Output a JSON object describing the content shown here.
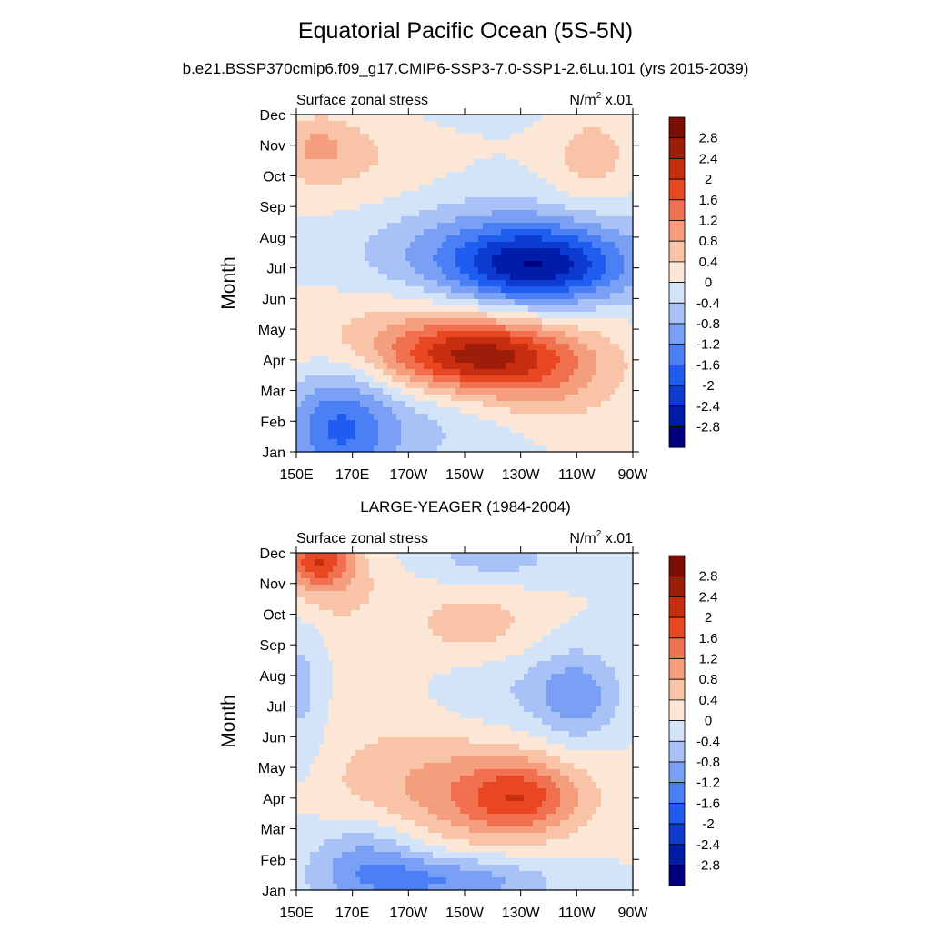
{
  "figure": {
    "title": "Equatorial Pacific Ocean (5S-5N)",
    "subtitle": "b.e21.BSSP370cmip6.f09_g17.CMIP6-SSP3-7.0-SSP1-2.6Lu.101 (yrs 2015-2039)",
    "panel2_title": "LARGE-YEAGER (1984-2004)"
  },
  "chart_data": [
    {
      "type": "heatmap",
      "left_label": "Surface zonal stress",
      "unit_label_base": "N/m",
      "unit_label_sup": "2",
      "unit_label_tail": " x.01",
      "ylabel": "Month",
      "x_tick_labels": [
        "150E",
        "170E",
        "170W",
        "150W",
        "130W",
        "110W",
        "90W"
      ],
      "x_tick_lon": [
        150,
        170,
        190,
        210,
        230,
        250,
        270
      ],
      "xlim": [
        150,
        270
      ],
      "y_tick_labels": [
        "Jan",
        "Feb",
        "Mar",
        "Apr",
        "May",
        "Jun",
        "Jul",
        "Aug",
        "Sep",
        "Oct",
        "Nov",
        "Dec"
      ],
      "ylim": [
        1,
        12
      ],
      "contour_levels": [
        -2.8,
        -2.4,
        -2,
        -1.6,
        -1.2,
        -0.8,
        -0.4,
        0,
        0.4,
        0.8,
        1.2,
        1.6,
        2,
        2.4,
        2.8
      ],
      "colorbar_labels": [
        "2.8",
        "2.4",
        "2",
        "1.6",
        "1.2",
        "0.8",
        "0.4",
        "0",
        "-0.4",
        "-0.8",
        "-1.2",
        "-1.6",
        "-2",
        "-2.4",
        "-2.8"
      ],
      "features": [
        {
          "lon": 165,
          "month": 1.8,
          "value": -1.5,
          "sx": 14,
          "sy": 1.5
        },
        {
          "lon": 195,
          "month": 2.0,
          "value": -0.5,
          "sx": 25,
          "sy": 1.2
        },
        {
          "lon": 215,
          "month": 4.1,
          "value": 1.9,
          "sx": 22,
          "sy": 0.8
        },
        {
          "lon": 200,
          "month": 4.6,
          "value": 0.8,
          "sx": 40,
          "sy": 1.3
        },
        {
          "lon": 240,
          "month": 3.2,
          "value": 0.6,
          "sx": 18,
          "sy": 1.0
        },
        {
          "lon": 235,
          "month": 7.0,
          "value": -2.0,
          "sx": 22,
          "sy": 0.9
        },
        {
          "lon": 225,
          "month": 7.5,
          "value": -1.0,
          "sx": 40,
          "sy": 1.3
        },
        {
          "lon": 165,
          "month": 10.5,
          "value": 0.5,
          "sx": 25,
          "sy": 1.2
        },
        {
          "lon": 158,
          "month": 11.0,
          "value": 0.5,
          "sx": 8,
          "sy": 0.6
        },
        {
          "lon": 255,
          "month": 10.5,
          "value": 0.6,
          "sx": 12,
          "sy": 1.2
        },
        {
          "lon": 215,
          "month": 12.0,
          "value": -0.2,
          "sx": 20,
          "sy": 0.4
        }
      ]
    },
    {
      "type": "heatmap",
      "left_label": "Surface zonal stress",
      "unit_label_base": "N/m",
      "unit_label_sup": "2",
      "unit_label_tail": " x.01",
      "ylabel": "Month",
      "x_tick_labels": [
        "150E",
        "170E",
        "170W",
        "150W",
        "130W",
        "110W",
        "90W"
      ],
      "x_tick_lon": [
        150,
        170,
        190,
        210,
        230,
        250,
        270
      ],
      "xlim": [
        150,
        270
      ],
      "y_tick_labels": [
        "Jan",
        "Feb",
        "Mar",
        "Apr",
        "May",
        "Jun",
        "Jul",
        "Aug",
        "Sep",
        "Oct",
        "Nov",
        "Dec"
      ],
      "ylim": [
        1,
        12
      ],
      "contour_levels": [
        -2.8,
        -2.4,
        -2,
        -1.6,
        -1.2,
        -0.8,
        -0.4,
        0,
        0.4,
        0.8,
        1.2,
        1.6,
        2,
        2.4,
        2.8
      ],
      "colorbar_labels": [
        "2.8",
        "2.4",
        "2",
        "1.6",
        "1.2",
        "0.8",
        "0.4",
        "0",
        "-0.4",
        "-0.8",
        "-1.2",
        "-1.6",
        "-2",
        "-2.4",
        "-2.8"
      ],
      "features": [
        {
          "lon": 158,
          "month": 11.8,
          "value": 1.6,
          "sx": 8,
          "sy": 0.6
        },
        {
          "lon": 160,
          "month": 11.0,
          "value": 0.6,
          "sx": 15,
          "sy": 1.0
        },
        {
          "lon": 230,
          "month": 4.0,
          "value": 1.3,
          "sx": 14,
          "sy": 0.8
        },
        {
          "lon": 210,
          "month": 4.2,
          "value": 0.8,
          "sx": 30,
          "sy": 1.3
        },
        {
          "lon": 215,
          "month": 9.6,
          "value": 0.6,
          "sx": 16,
          "sy": 0.9
        },
        {
          "lon": 175,
          "month": 2.0,
          "value": -1.0,
          "sx": 15,
          "sy": 1.0
        },
        {
          "lon": 205,
          "month": 1.3,
          "value": -1.2,
          "sx": 25,
          "sy": 0.6
        },
        {
          "lon": 152,
          "month": 7.5,
          "value": -0.6,
          "sx": 6,
          "sy": 2.0
        },
        {
          "lon": 250,
          "month": 7.3,
          "value": -0.9,
          "sx": 10,
          "sy": 1.0
        },
        {
          "lon": 225,
          "month": 7.5,
          "value": -0.5,
          "sx": 25,
          "sy": 1.2
        },
        {
          "lon": 220,
          "month": 11.8,
          "value": -0.6,
          "sx": 20,
          "sy": 0.6
        },
        {
          "lon": 190,
          "month": 6.0,
          "value": 0.25,
          "sx": 30,
          "sy": 3.0
        }
      ]
    }
  ],
  "colors": {
    "scale": [
      "#000080",
      "#001ca8",
      "#0d3bd0",
      "#1f5df0",
      "#4a7ff5",
      "#7aa0f5",
      "#a8c2f8",
      "#d3e3f8",
      "#fce6d6",
      "#f9c3a8",
      "#f59e7d",
      "#f0704f",
      "#e84722",
      "#c72e10",
      "#9e1c0a",
      "#7b0d05"
    ]
  }
}
